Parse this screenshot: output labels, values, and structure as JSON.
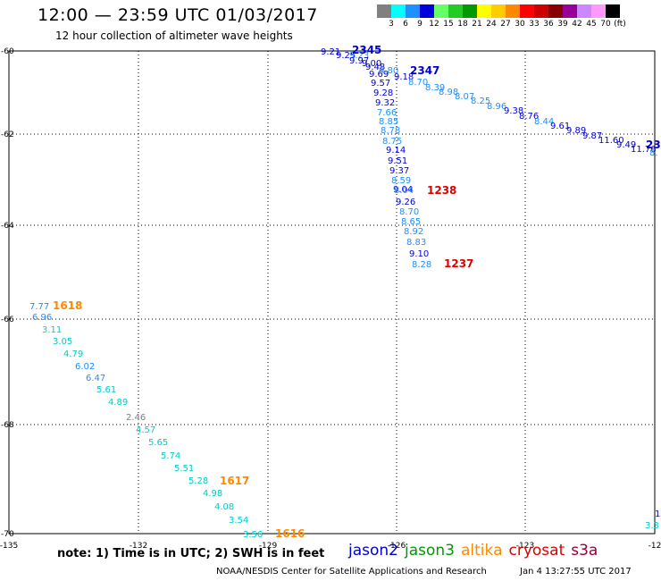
{
  "header": {
    "title": "12:00 — 23:59 UTC 01/03/2017",
    "subtitle": "12 hour collection of altimeter wave heights"
  },
  "legend": {
    "colors": [
      "#808080",
      "#00ffff",
      "#1e90ff",
      "#0000dd",
      "#66ff66",
      "#22cc22",
      "#009900",
      "#ffff00",
      "#ffcc00",
      "#ff8800",
      "#ff0000",
      "#cc0000",
      "#880000",
      "#990099",
      "#cc88ff",
      "#ff99ff",
      "#000000"
    ],
    "labels": [
      "3",
      "6",
      "9",
      "12",
      "15",
      "18",
      "21",
      "24",
      "27",
      "30",
      "33",
      "36",
      "39",
      "42",
      "45",
      "70",
      "(ft)"
    ]
  },
  "map": {
    "lon_ticks": [
      "-135",
      "-132",
      "-129",
      "-126",
      "-123",
      "-12"
    ],
    "lat_ticks": [
      "-60",
      "-62",
      "-64",
      "-66",
      "-68",
      "-70"
    ],
    "points": [
      {
        "v": "9.21",
        "c": "#0000dd"
      },
      {
        "v": "9.25",
        "c": "#0000dd"
      },
      {
        "v": "9.23",
        "c": "#1e90ff"
      },
      {
        "v": "9.97",
        "c": "#0000dd"
      },
      {
        "v": "9.00",
        "c": "#0000dd"
      },
      {
        "v": "9.48",
        "c": "#0000dd"
      },
      {
        "v": "9.80",
        "c": "#1e90ff"
      },
      {
        "v": "9.69",
        "c": "#0000dd"
      },
      {
        "v": "9.18",
        "c": "#0000dd"
      },
      {
        "v": "8.70",
        "c": "#1e90ff"
      },
      {
        "v": "9.57",
        "c": "#0000dd"
      },
      {
        "v": "8.39",
        "c": "#1e90ff"
      },
      {
        "v": "8.98",
        "c": "#1e90ff"
      },
      {
        "v": "9.28",
        "c": "#0000dd"
      },
      {
        "v": "8.07",
        "c": "#1e90ff"
      },
      {
        "v": "9.32",
        "c": "#0000dd"
      },
      {
        "v": "8.25",
        "c": "#1e90ff"
      },
      {
        "v": "8.96",
        "c": "#1e90ff"
      },
      {
        "v": "7.66",
        "c": "#1e90ff"
      },
      {
        "v": "9.38",
        "c": "#0000dd"
      },
      {
        "v": "8.76",
        "c": "#0000dd"
      },
      {
        "v": "8.85",
        "c": "#1e90ff"
      },
      {
        "v": "8.44",
        "c": "#1e90ff"
      },
      {
        "v": "9.61",
        "c": "#0000dd"
      },
      {
        "v": "8.78",
        "c": "#1e90ff"
      },
      {
        "v": "9.89",
        "c": "#0000dd"
      },
      {
        "v": "9.87",
        "c": "#0000dd"
      },
      {
        "v": "8.75",
        "c": "#1e90ff"
      },
      {
        "v": "11.60",
        "c": "#0000dd"
      },
      {
        "v": "9.49",
        "c": "#0000dd"
      },
      {
        "v": "11.76",
        "c": "#0000dd"
      },
      {
        "v": "9.14",
        "c": "#0000dd"
      },
      {
        "v": "8.",
        "c": "#1e90ff"
      },
      {
        "v": "9.51",
        "c": "#0000dd"
      },
      {
        "v": "9.37",
        "c": "#0000dd"
      },
      {
        "v": "8.59",
        "c": "#1e90ff"
      },
      {
        "v": "9.04",
        "c": "#0000dd"
      },
      {
        "v": "8.04",
        "c": "#1e90ff"
      },
      {
        "v": "9.26",
        "c": "#0000dd"
      },
      {
        "v": "8.70",
        "c": "#1e90ff"
      },
      {
        "v": "8.65",
        "c": "#1e90ff"
      },
      {
        "v": "8.92",
        "c": "#1e90ff"
      },
      {
        "v": "8.83",
        "c": "#1e90ff"
      },
      {
        "v": "9.10",
        "c": "#0000dd"
      },
      {
        "v": "8.28",
        "c": "#1e90ff"
      },
      {
        "v": "7.77",
        "c": "#1e90ff"
      },
      {
        "v": "6.96",
        "c": "#1e90ff"
      },
      {
        "v": "3.11",
        "c": "#00cccc"
      },
      {
        "v": "3.05",
        "c": "#00cccc"
      },
      {
        "v": "4.79",
        "c": "#00cccc"
      },
      {
        "v": "6.02",
        "c": "#1e90ff"
      },
      {
        "v": "6.47",
        "c": "#1e90ff"
      },
      {
        "v": "5.61",
        "c": "#00cccc"
      },
      {
        "v": "4.89",
        "c": "#00cccc"
      },
      {
        "v": "2.46",
        "c": "#808080"
      },
      {
        "v": "4.57",
        "c": "#00cccc"
      },
      {
        "v": "5.65",
        "c": "#00cccc"
      },
      {
        "v": "5.74",
        "c": "#00cccc"
      },
      {
        "v": "5.51",
        "c": "#00cccc"
      },
      {
        "v": "5.28",
        "c": "#00cccc"
      },
      {
        "v": "4.98",
        "c": "#00cccc"
      },
      {
        "v": "4.08",
        "c": "#00cccc"
      },
      {
        "v": "3.54",
        "c": "#00cccc"
      },
      {
        "v": "3.56",
        "c": "#00cccc"
      },
      {
        "v": "1",
        "c": "#0000dd"
      },
      {
        "v": "3.3",
        "c": "#00cccc"
      }
    ],
    "times": [
      {
        "t": "2345",
        "c": "#0000cc"
      },
      {
        "t": "2347",
        "c": "#0000cc"
      },
      {
        "t": "23",
        "c": "#0000cc"
      },
      {
        "t": "1238",
        "c": "#dd0000"
      },
      {
        "t": "1237",
        "c": "#dd0000"
      },
      {
        "t": "1618",
        "c": "#ff8800"
      },
      {
        "t": "1617",
        "c": "#ff8800"
      },
      {
        "t": "1616",
        "c": "#ff8800"
      }
    ]
  },
  "footer": {
    "note": "note:  1) Time is in UTC; 2) SWH is in feet",
    "satellites": [
      {
        "name": "jason2",
        "color": "#0000cc"
      },
      {
        "name": "jason3",
        "color": "#009900"
      },
      {
        "name": "altika",
        "color": "#ff8800"
      },
      {
        "name": "cryosat",
        "color": "#dd0000"
      },
      {
        "name": "s3a",
        "color": "#990033"
      }
    ],
    "credit": "NOAA/NESDIS Center for Satellite Applications and Research",
    "timestamp": "Jan  4 13:27:55 UTC 2017"
  }
}
